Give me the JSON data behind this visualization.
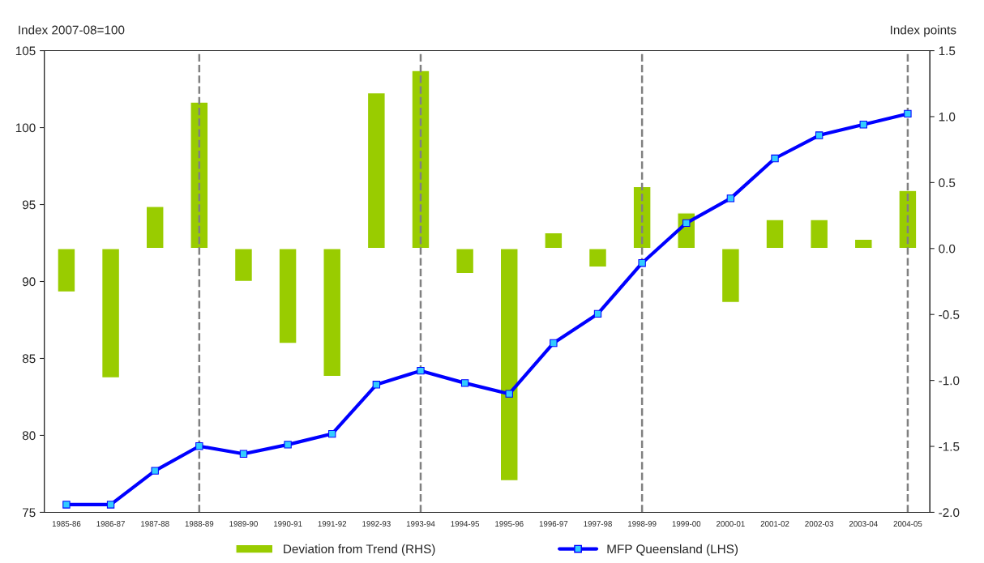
{
  "chart_data": {
    "type": "bar",
    "ylabel": "Index 2007-08=100",
    "y2label": "Index points",
    "categories": [
      "1985-86",
      "1986-87",
      "1987-88",
      "1988-89",
      "1989-90",
      "1990-91",
      "1991-92",
      "1992-93",
      "1993-94",
      "1994-95",
      "1995-96",
      "1996-97",
      "1997-98",
      "1998-99",
      "1999-00",
      "2000-01",
      "2001-02",
      "2002-03",
      "2003-04",
      "2004-05"
    ],
    "series": [
      {
        "name": "Deviation from Trend (RHS)",
        "axis": "y2",
        "color": "#99cc00",
        "values": [
          -0.33,
          -0.98,
          0.32,
          1.11,
          -0.25,
          -0.72,
          -0.97,
          1.18,
          1.35,
          -0.19,
          -1.76,
          0.12,
          -0.14,
          0.47,
          0.27,
          -0.41,
          0.22,
          0.22,
          0.07,
          0.44
        ]
      },
      {
        "name": "MFP Queensland (LHS)",
        "type": "line",
        "color": "#0000ff",
        "marker": "square",
        "values": [
          75.5,
          75.5,
          77.7,
          79.3,
          78.8,
          79.4,
          80.1,
          83.3,
          84.2,
          83.4,
          82.7,
          86.0,
          87.9,
          91.2,
          93.8,
          95.4,
          98.0,
          99.5,
          100.2,
          100.9
        ]
      }
    ],
    "ylim": [
      75,
      105
    ],
    "yticks": [
      75,
      80,
      85,
      90,
      95,
      100,
      105
    ],
    "y2lim": [
      -2.0,
      1.5
    ],
    "y2ticks": [
      {
        "value": -2.0,
        "label": "-2.0"
      },
      {
        "value": -1.5,
        "label": "-1.5"
      },
      {
        "value": -1.0,
        "label": "-1.0"
      },
      {
        "value": -0.5,
        "label": "-0.5"
      },
      {
        "value": 0.0,
        "label": "0.0"
      },
      {
        "value": 0.5,
        "label": "0.5"
      },
      {
        "value": 1.0,
        "label": "1.0"
      },
      {
        "value": 1.5,
        "label": "1.5"
      }
    ],
    "ref_lines": [
      {
        "axis": "x",
        "value": "1988-89",
        "color": "#808080",
        "line_style": "dashed"
      },
      {
        "axis": "x",
        "value": "1993-94",
        "color": "#808080",
        "line_style": "dashed"
      },
      {
        "axis": "x",
        "value": "1998-99",
        "color": "#808080",
        "line_style": "dashed"
      },
      {
        "axis": "x",
        "value": "2004-05",
        "color": "#808080",
        "line_style": "dashed"
      }
    ],
    "grid": false,
    "legend": "bottom"
  }
}
